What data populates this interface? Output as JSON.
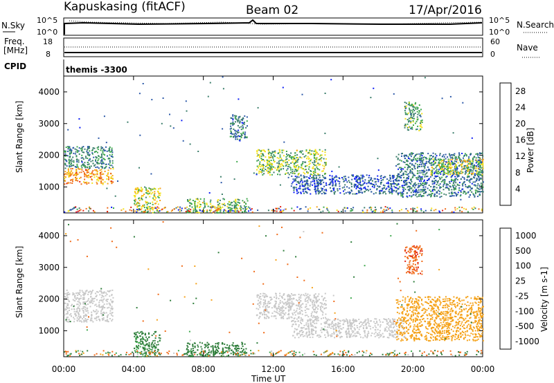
{
  "header": {
    "station": "Kapuskasing (fitACF)",
    "beam": "Beam 02",
    "date": "17/Apr/2016"
  },
  "top_panel": {
    "left_label": "N.Sky",
    "left_ticks": [
      "10^5",
      "10^0"
    ],
    "right_label": "N.Search",
    "right_ticks": [
      "10^5",
      "10^0"
    ]
  },
  "freq_panel": {
    "left_label_line1": "Freq.",
    "left_label_line2": "[MHz]",
    "left_ticks": [
      "18",
      "8"
    ],
    "right_label": "Nave",
    "right_ticks": [
      "60",
      "0"
    ]
  },
  "cpid_label": "CPID",
  "cpid_value": "themis -3300",
  "x_axis": {
    "label": "Time UT",
    "ticks": [
      "00:00",
      "04:00",
      "08:00",
      "12:00",
      "16:00",
      "20:00",
      "00:00"
    ]
  },
  "colors": {
    "power": [
      "#0b1cf5",
      "#2b58a8",
      "#3a7d6a",
      "#3ea84c",
      "#f3e21a",
      "#f5a219",
      "#f06a17",
      "#e11d10"
    ],
    "velocity": [
      "#e11d10",
      "#f06a17",
      "#f5a219",
      "#c8c8c8",
      "#c8c8c8",
      "#3ea84c",
      "#2e7d3a",
      "#2b58a8",
      "#1a2ea6"
    ]
  },
  "chart_data": [
    {
      "type": "heatmap",
      "title": "Power",
      "ylabel": "Slant Range [km]",
      "xlabel": "",
      "yticks": [
        "1000",
        "2000",
        "3000",
        "4000"
      ],
      "ylim": [
        180,
        4500
      ],
      "xlim_hours": [
        0,
        24
      ],
      "colorbar_label": "Power [dB]",
      "colorbar_ticks": [
        "4",
        "8",
        "12",
        "16",
        "20",
        "24",
        "28"
      ],
      "colorbar_range": [
        0,
        30
      ],
      "features": [
        {
          "t": [
            0.0,
            2.8
          ],
          "range": [
            1100,
            1600
          ],
          "value": 22
        },
        {
          "t": [
            0.0,
            2.8
          ],
          "range": [
            1600,
            2300
          ],
          "value": 10
        },
        {
          "t": [
            4.0,
            5.5
          ],
          "range": [
            200,
            1000
          ],
          "value": 16
        },
        {
          "t": [
            7.0,
            10.5
          ],
          "range": [
            200,
            650
          ],
          "value": 14
        },
        {
          "t": [
            9.5,
            10.5
          ],
          "range": [
            2500,
            3300
          ],
          "value": 8
        },
        {
          "t": [
            11.0,
            15.0
          ],
          "range": [
            1400,
            2200
          ],
          "value": 14
        },
        {
          "t": [
            13.0,
            19.5
          ],
          "range": [
            800,
            1400
          ],
          "value": 6
        },
        {
          "t": [
            19.0,
            24.0
          ],
          "range": [
            700,
            2100
          ],
          "value": 8
        },
        {
          "t": [
            21.0,
            24.0
          ],
          "range": [
            1400,
            1900
          ],
          "value": 16
        },
        {
          "t": [
            19.5,
            20.5
          ],
          "range": [
            2800,
            3700
          ],
          "value": 12
        }
      ]
    },
    {
      "type": "heatmap",
      "title": "Velocity",
      "ylabel": "Slant Range [km]",
      "xlabel": "Time UT",
      "yticks": [
        "1000",
        "2000",
        "3000",
        "4000"
      ],
      "ylim": [
        180,
        4500
      ],
      "xlim_hours": [
        0,
        24
      ],
      "colorbar_label": "Velocity [m s-1]",
      "colorbar_ticks": [
        "1000",
        "500",
        "100",
        "25",
        "-25",
        "-100",
        "-500",
        "-1000"
      ],
      "features": [
        {
          "t": [
            0.0,
            2.8
          ],
          "range": [
            1300,
            2300
          ],
          "value": 0
        },
        {
          "t": [
            4.0,
            5.5
          ],
          "range": [
            200,
            1000
          ],
          "value": 200
        },
        {
          "t": [
            7.0,
            10.5
          ],
          "range": [
            200,
            650
          ],
          "value": 300
        },
        {
          "t": [
            11.0,
            15.0
          ],
          "range": [
            1400,
            2200
          ],
          "value": 0
        },
        {
          "t": [
            13.0,
            19.5
          ],
          "range": [
            800,
            1400
          ],
          "value": 0
        },
        {
          "t": [
            19.0,
            24.0
          ],
          "range": [
            700,
            2100
          ],
          "value": -50
        },
        {
          "t": [
            19.5,
            20.5
          ],
          "range": [
            2800,
            3700
          ],
          "value": -400
        }
      ]
    }
  ]
}
